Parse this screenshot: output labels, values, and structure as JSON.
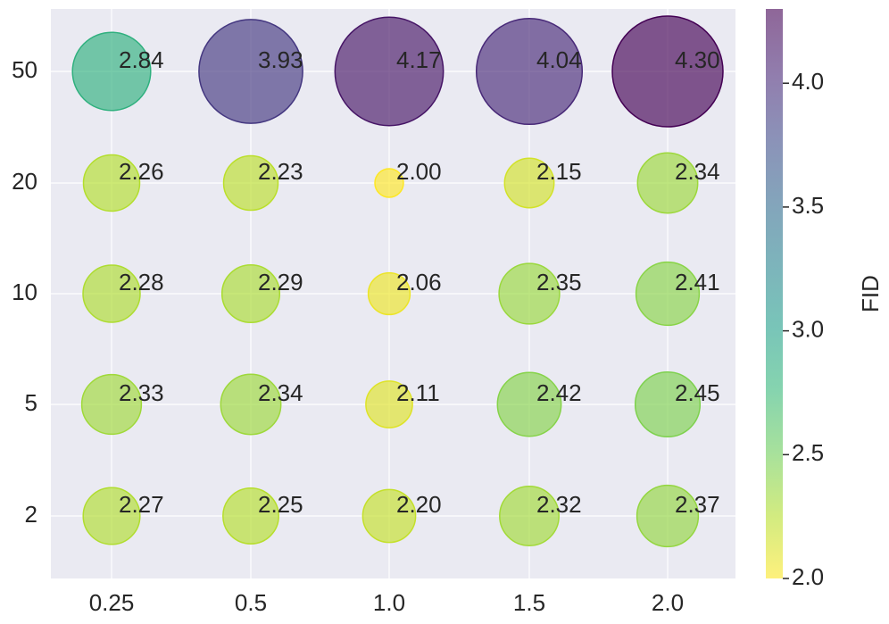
{
  "chart_data": {
    "type": "bubble",
    "x_categories": [
      "0.25",
      "0.5",
      "1.0",
      "1.5",
      "2.0"
    ],
    "y_categories": [
      "50",
      "20",
      "10",
      "5",
      "2"
    ],
    "grid": true,
    "xlabel": "",
    "ylabel": "",
    "colorbar": {
      "label": "FID",
      "colormap": "viridis_r",
      "range": [
        2.0,
        4.3
      ],
      "ticks": [
        2.0,
        2.5,
        3.0,
        3.5,
        4.0
      ],
      "tick_labels": [
        "2.0",
        "2.5",
        "3.0",
        "3.5",
        "4.0"
      ]
    },
    "values": [
      [
        "2.84",
        "3.93",
        "4.17",
        "4.04",
        "4.30"
      ],
      [
        "2.26",
        "2.23",
        "2.00",
        "2.15",
        "2.34"
      ],
      [
        "2.28",
        "2.29",
        "2.06",
        "2.35",
        "2.41"
      ],
      [
        "2.33",
        "2.34",
        "2.11",
        "2.42",
        "2.45"
      ],
      [
        "2.27",
        "2.25",
        "2.20",
        "2.32",
        "2.37"
      ]
    ],
    "size_note": "bubble area grows with FID"
  },
  "colors": {
    "background": "#EAEAF2",
    "grid": "#FFFFFF",
    "text": "#262626",
    "viridis_stops": [
      "#440154",
      "#482878",
      "#3E4A89",
      "#31688E",
      "#26828E",
      "#1F9E89",
      "#35B779",
      "#6DCD59",
      "#B4DE2C",
      "#FDE725"
    ]
  }
}
